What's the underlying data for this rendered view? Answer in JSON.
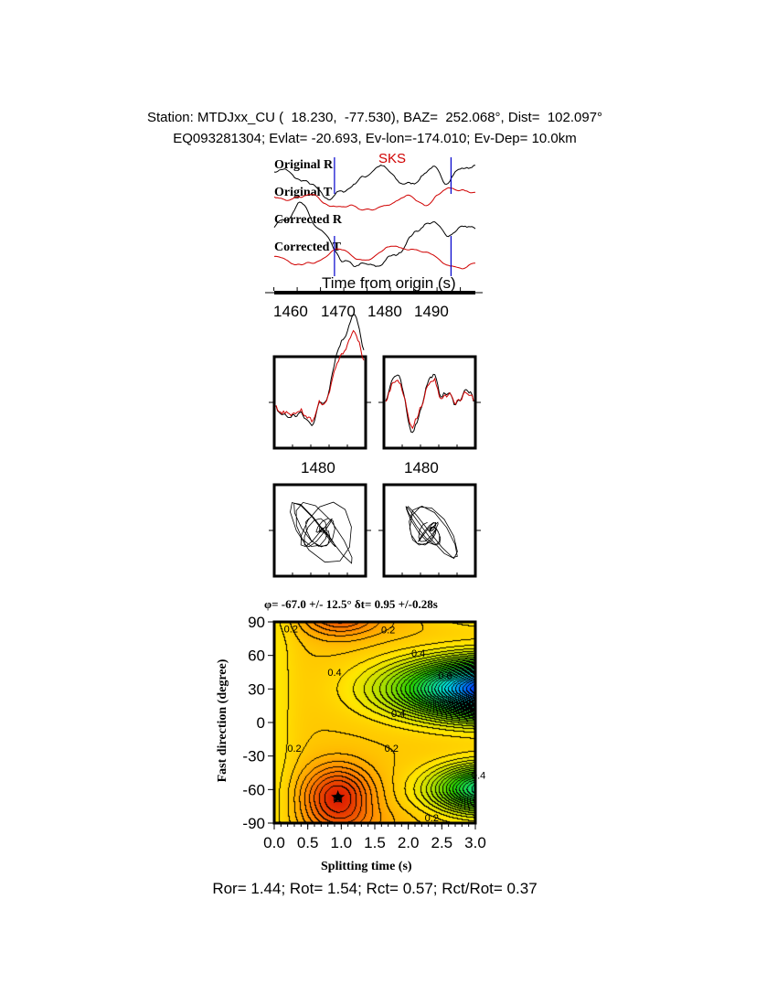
{
  "header": {
    "station_line": "Station: MTDJxx_CU (  18.230,  -77.530), BAZ=  252.068°, Dist=  102.097°",
    "event_line": "EQ093281304; Evlat= -20.693, Ev-lon=-174.010; Ev-Dep= 10.0km"
  },
  "traces": {
    "labels": [
      "Original R",
      "Original T",
      "Corrected R",
      "Corrected T"
    ],
    "phase_label": "SKS",
    "xlabel": "Time from origin (s)",
    "xticks": [
      "1460",
      "1470",
      "1480",
      "1490"
    ],
    "window_start": 1469,
    "window_end": 1494,
    "colors": {
      "radial": "#000000",
      "transverse": "#d00000",
      "window": "#0000cc"
    }
  },
  "waveform_panels": {
    "xtick_labels": [
      "1480",
      "1480"
    ]
  },
  "chart_data": {
    "type": "heatmap",
    "title": "φ= -67.0 +/- 12.5° δt= 0.95 +/-0.28s",
    "xlabel": "Splitting time (s)",
    "ylabel": "Fast direction (degree)",
    "xlim": [
      0.0,
      3.0
    ],
    "ylim": [
      -90,
      90
    ],
    "xticks": [
      "0.0",
      "0.5",
      "1.0",
      "1.5",
      "2.0",
      "2.5",
      "3.0"
    ],
    "yticks": [
      "90",
      "60",
      "30",
      "0",
      "-30",
      "-60",
      "-90"
    ],
    "contour_labels": [
      "0.2",
      "0.2",
      "0.4",
      "0.4",
      "0.6",
      "0.4",
      "0.2",
      "0.2",
      "0.2",
      "0.4"
    ],
    "best_fit": {
      "splitting_time": 0.95,
      "fast_direction": -67.0
    },
    "colormap": [
      "#e02000",
      "#ff8c00",
      "#ffe000",
      "#20d000",
      "#00e0e0",
      "#0040ff"
    ]
  },
  "footer": {
    "ratios": "Ror= 1.44; Rot= 1.54; Rct= 0.57; Rct/Rot= 0.37"
  }
}
